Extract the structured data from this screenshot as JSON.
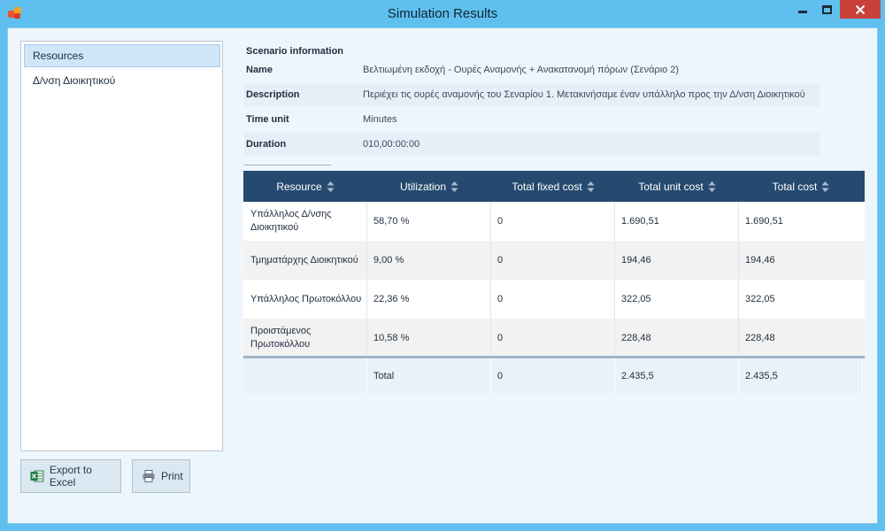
{
  "window": {
    "title": "Simulation Results"
  },
  "sidebar": {
    "items": [
      {
        "label": "Resources",
        "selected": true
      },
      {
        "label": "Δ/νση Διοικητικού",
        "selected": false
      }
    ]
  },
  "actions": {
    "export_label": "Export to Excel",
    "print_label": "Print"
  },
  "scenario": {
    "heading": "Scenario information",
    "rows": [
      {
        "label": "Name",
        "value": "Βελτιωμένη εκδοχή - Ουρές Αναμονής + Ανακατανομή πόρων (Σενάριο 2)"
      },
      {
        "label": "Description",
        "value": "Περιέχει τις ουρές αναμονής του Σεναρίου 1. Μετακινήσαμε έναν υπάλληλο προς την Δ/νση Διοικητικού"
      },
      {
        "label": "Time unit",
        "value": "Minutes"
      },
      {
        "label": "Duration",
        "value": "010,00:00:00"
      }
    ]
  },
  "table": {
    "columns": [
      "Resource",
      "Utilization",
      "Total fixed cost",
      "Total unit cost",
      "Total cost"
    ],
    "rows": [
      [
        "Υπάλληλος Δ/νσης Διοικητικού",
        "58,70 %",
        "0",
        "1.690,51",
        "1.690,51"
      ],
      [
        "Τμηματάρχης Διοικητικού",
        "9,00 %",
        "0",
        "194,46",
        "194,46"
      ],
      [
        "Υπάλληλος Πρωτοκόλλου",
        "22,36 %",
        "0",
        "322,05",
        "322,05"
      ],
      [
        "Προιστάμενος Πρωτοκόλλου",
        "10,58 %",
        "0",
        "228,48",
        "228,48"
      ]
    ],
    "total": [
      "",
      "Total",
      "0",
      "2.435,5",
      "2.435,5"
    ]
  },
  "colors": {
    "titlebar": "#5fc0f0",
    "header_bg": "#264a6f",
    "close_button": "#c7403a",
    "selected_item": "#cfe5f8"
  },
  "icons": [
    "app-icon",
    "minimize-icon",
    "maximize-icon",
    "close-icon",
    "excel-icon",
    "printer-icon",
    "sort-icon"
  ]
}
